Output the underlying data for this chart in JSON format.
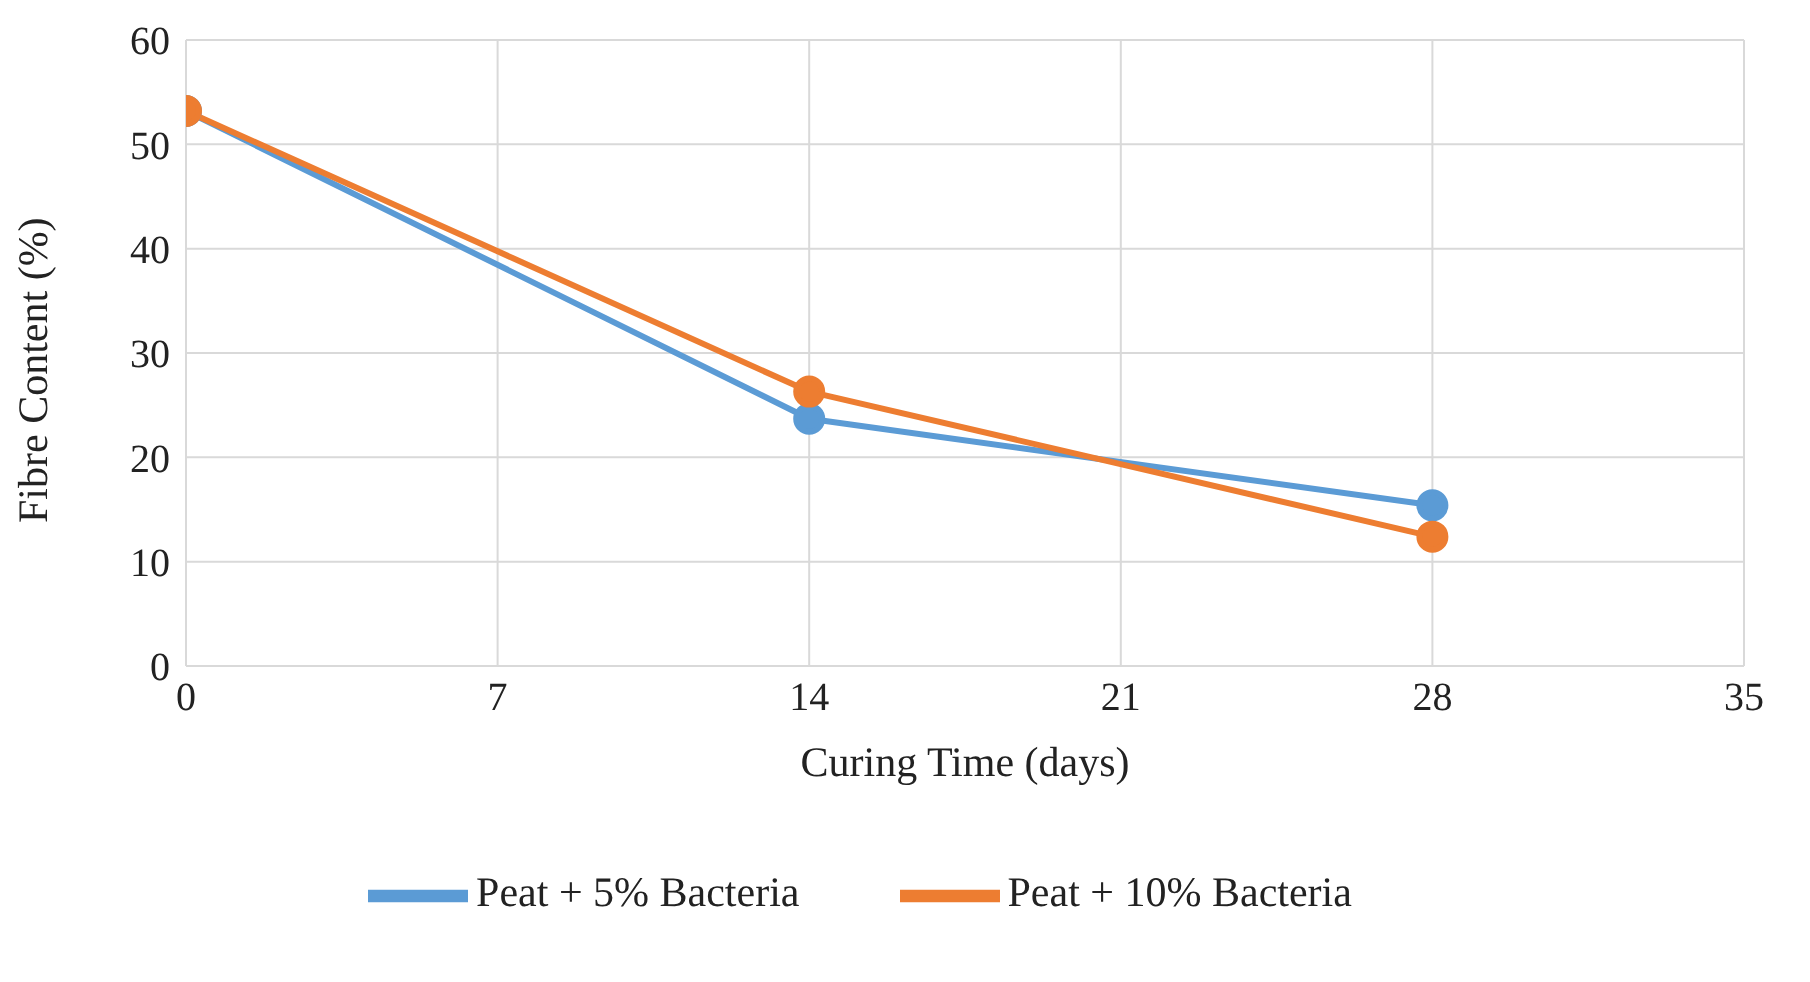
{
  "chart_data": {
    "type": "line",
    "xlabel": "Curing Time (days)",
    "ylabel": "Fibre Content (%)",
    "x": [
      0,
      14,
      28
    ],
    "series": [
      {
        "name": "Peat + 5% Bacteria",
        "color": "#5b9bd5",
        "values": [
          53.2,
          23.7,
          15.4
        ]
      },
      {
        "name": "Peat + 10% Bacteria",
        "color": "#ed7d31",
        "values": [
          53.2,
          26.3,
          12.4
        ]
      }
    ],
    "xlim": [
      0,
      35
    ],
    "xticks": [
      0,
      7,
      14,
      21,
      28,
      35
    ],
    "ylim": [
      0,
      60
    ],
    "yticks": [
      0,
      10,
      20,
      30,
      40,
      50,
      60
    ],
    "grid": true,
    "legend": "bottom",
    "marker": "circle",
    "line_style": "solid"
  }
}
